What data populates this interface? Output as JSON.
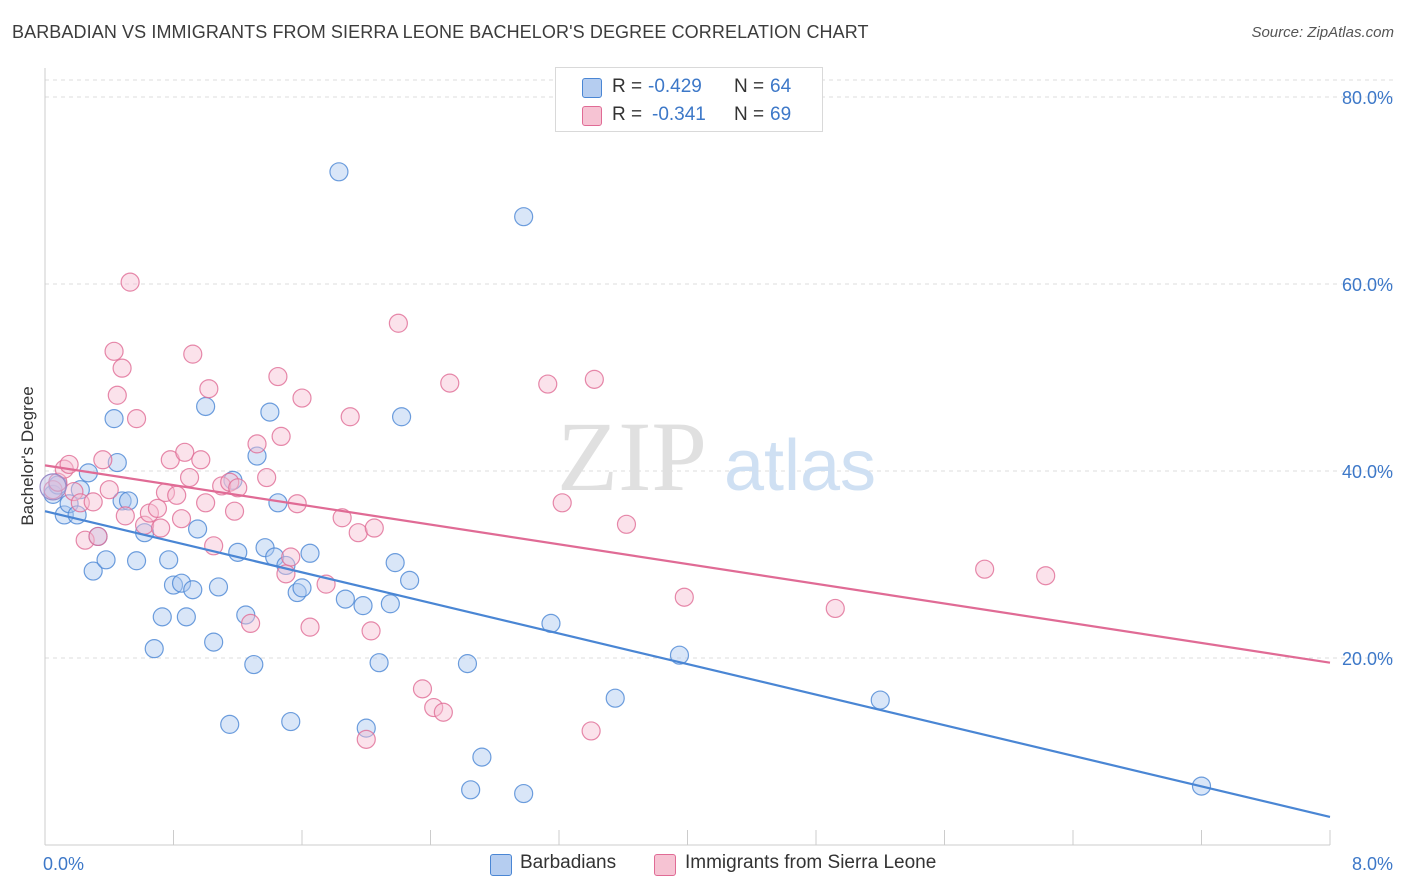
{
  "title": "BARBADIAN VS IMMIGRANTS FROM SIERRA LEONE BACHELOR'S DEGREE CORRELATION CHART",
  "source": "Source: ZipAtlas.com",
  "watermark": {
    "zip": "ZIP",
    "atlas": "atlas"
  },
  "legend": {
    "r_label": "R =",
    "n_label": "N =",
    "items": [
      {
        "name": "Barbadians",
        "r": "-0.429",
        "n": "64",
        "color": "#4a86d4",
        "fill": "#b5cdf0"
      },
      {
        "name": "Immigrants from Sierra Leone",
        "r": "-0.341",
        "n": "69",
        "color": "#e06b95",
        "fill": "#f6c3d3"
      }
    ]
  },
  "chart_data": {
    "type": "scatter",
    "title": "BARBADIAN VS IMMIGRANTS FROM SIERRA LEONE BACHELOR'S DEGREE CORRELATION CHART",
    "xlabel": "",
    "ylabel": "Bachelor's Degree",
    "xlim": [
      0,
      8
    ],
    "ylim": [
      0,
      80
    ],
    "x_tick_labels": [
      {
        "value": 0,
        "label": "0.0%"
      },
      {
        "value": 8,
        "label": "8.0%"
      }
    ],
    "y_tick_labels": [
      {
        "value": 20,
        "label": "20.0%"
      },
      {
        "value": 40,
        "label": "40.0%"
      },
      {
        "value": 60,
        "label": "60.0%"
      },
      {
        "value": 80,
        "label": "80.0%"
      }
    ],
    "grid": true,
    "series": [
      {
        "name": "Barbadians",
        "color": "#4a86d4",
        "trend": {
          "x": [
            0,
            8
          ],
          "y": [
            35.7,
            3.0
          ]
        },
        "points": [
          [
            0.05,
            37.5
          ],
          [
            0.08,
            38.5
          ],
          [
            0.12,
            35.3
          ],
          [
            0.15,
            36.5
          ],
          [
            0.2,
            35.3
          ],
          [
            0.22,
            38.0
          ],
          [
            0.27,
            39.8
          ],
          [
            0.3,
            29.3
          ],
          [
            0.33,
            33.0
          ],
          [
            0.38,
            30.5
          ],
          [
            0.43,
            45.6
          ],
          [
            0.45,
            40.9
          ],
          [
            0.48,
            36.8
          ],
          [
            0.52,
            36.8
          ],
          [
            0.57,
            30.4
          ],
          [
            0.62,
            33.4
          ],
          [
            0.68,
            21.0
          ],
          [
            0.73,
            24.4
          ],
          [
            0.77,
            30.5
          ],
          [
            0.8,
            27.8
          ],
          [
            0.85,
            28.0
          ],
          [
            0.88,
            24.4
          ],
          [
            0.92,
            27.3
          ],
          [
            0.95,
            33.8
          ],
          [
            1.0,
            46.9
          ],
          [
            1.05,
            21.7
          ],
          [
            1.08,
            27.6
          ],
          [
            1.15,
            12.9
          ],
          [
            1.17,
            39.0
          ],
          [
            1.2,
            31.3
          ],
          [
            1.25,
            24.6
          ],
          [
            1.3,
            19.3
          ],
          [
            1.32,
            41.6
          ],
          [
            1.37,
            31.8
          ],
          [
            1.4,
            46.3
          ],
          [
            1.43,
            30.8
          ],
          [
            1.45,
            36.6
          ],
          [
            1.5,
            29.9
          ],
          [
            1.53,
            13.2
          ],
          [
            1.57,
            27.0
          ],
          [
            1.6,
            27.5
          ],
          [
            1.65,
            31.2
          ],
          [
            1.83,
            72.0
          ],
          [
            1.87,
            26.3
          ],
          [
            1.98,
            25.6
          ],
          [
            2.0,
            12.5
          ],
          [
            2.08,
            19.5
          ],
          [
            2.15,
            25.8
          ],
          [
            2.18,
            30.2
          ],
          [
            2.22,
            45.8
          ],
          [
            2.27,
            28.3
          ],
          [
            2.63,
            19.4
          ],
          [
            2.65,
            5.9
          ],
          [
            2.72,
            9.4
          ],
          [
            2.98,
            5.5
          ],
          [
            2.98,
            67.2
          ],
          [
            3.15,
            23.7
          ],
          [
            3.55,
            15.7
          ],
          [
            3.95,
            20.3
          ],
          [
            5.2,
            15.5
          ],
          [
            7.2,
            6.3
          ]
        ]
      },
      {
        "name": "Immigrants from Sierra Leone",
        "color": "#e06b95",
        "trend": {
          "x": [
            0,
            8
          ],
          "y": [
            40.6,
            19.5
          ]
        },
        "points": [
          [
            0.05,
            38.0
          ],
          [
            0.08,
            38.8
          ],
          [
            0.12,
            40.2
          ],
          [
            0.15,
            40.7
          ],
          [
            0.18,
            37.8
          ],
          [
            0.22,
            36.6
          ],
          [
            0.25,
            32.6
          ],
          [
            0.3,
            36.7
          ],
          [
            0.33,
            33.0
          ],
          [
            0.36,
            41.2
          ],
          [
            0.4,
            38.0
          ],
          [
            0.43,
            52.8
          ],
          [
            0.45,
            48.1
          ],
          [
            0.48,
            51.0
          ],
          [
            0.5,
            35.2
          ],
          [
            0.53,
            60.2
          ],
          [
            0.57,
            45.6
          ],
          [
            0.62,
            34.2
          ],
          [
            0.65,
            35.5
          ],
          [
            0.7,
            36.0
          ],
          [
            0.72,
            33.9
          ],
          [
            0.75,
            37.7
          ],
          [
            0.78,
            41.2
          ],
          [
            0.82,
            37.4
          ],
          [
            0.85,
            34.9
          ],
          [
            0.87,
            42.0
          ],
          [
            0.9,
            39.3
          ],
          [
            0.92,
            52.5
          ],
          [
            0.97,
            41.2
          ],
          [
            1.0,
            36.6
          ],
          [
            1.02,
            48.8
          ],
          [
            1.05,
            32.0
          ],
          [
            1.1,
            38.4
          ],
          [
            1.15,
            38.8
          ],
          [
            1.18,
            35.7
          ],
          [
            1.2,
            38.2
          ],
          [
            1.28,
            23.7
          ],
          [
            1.32,
            42.9
          ],
          [
            1.38,
            39.3
          ],
          [
            1.45,
            50.1
          ],
          [
            1.47,
            43.7
          ],
          [
            1.5,
            29.0
          ],
          [
            1.53,
            30.8
          ],
          [
            1.57,
            36.5
          ],
          [
            1.6,
            47.8
          ],
          [
            1.65,
            23.3
          ],
          [
            1.75,
            27.9
          ],
          [
            1.85,
            35.0
          ],
          [
            1.9,
            45.8
          ],
          [
            1.95,
            33.4
          ],
          [
            2.0,
            11.3
          ],
          [
            2.03,
            22.9
          ],
          [
            2.05,
            33.9
          ],
          [
            2.2,
            55.8
          ],
          [
            2.35,
            16.7
          ],
          [
            2.42,
            14.7
          ],
          [
            2.48,
            14.2
          ],
          [
            2.52,
            49.4
          ],
          [
            3.13,
            49.3
          ],
          [
            3.22,
            36.6
          ],
          [
            3.4,
            12.2
          ],
          [
            3.42,
            49.8
          ],
          [
            3.62,
            34.3
          ],
          [
            3.98,
            26.5
          ],
          [
            4.92,
            25.3
          ],
          [
            5.85,
            29.5
          ],
          [
            6.23,
            28.8
          ]
        ]
      }
    ]
  }
}
